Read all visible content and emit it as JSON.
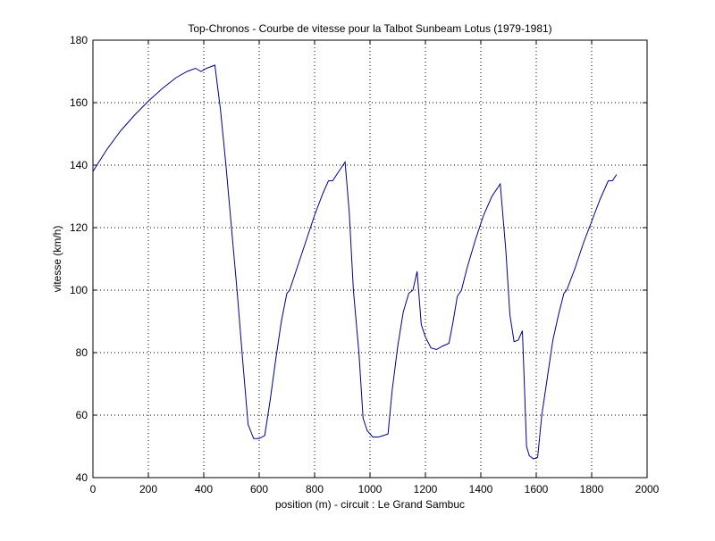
{
  "chart_data": {
    "type": "line",
    "title": "Top-Chronos - Courbe de vitesse pour la Talbot Sunbeam Lotus (1979-1981)",
    "xlabel": "position (m) - circuit : Le Grand Sambuc",
    "ylabel": "vitesse (km/h)",
    "xlim": [
      0,
      2000
    ],
    "ylim": [
      40,
      180
    ],
    "xticks": [
      0,
      200,
      400,
      600,
      800,
      1000,
      1200,
      1400,
      1600,
      1800,
      2000
    ],
    "yticks": [
      40,
      60,
      80,
      100,
      120,
      140,
      160,
      180
    ],
    "grid": true,
    "line_color": "#00008b",
    "series": [
      {
        "x": [
          0,
          50,
          100,
          150,
          200,
          250,
          300,
          340,
          370,
          390,
          410,
          440,
          460,
          480,
          500,
          520,
          540,
          560,
          580,
          600,
          620,
          640,
          660,
          680,
          700,
          710,
          740,
          770,
          800,
          830,
          850,
          865,
          880,
          895,
          910,
          925,
          940,
          960,
          975,
          990,
          1010,
          1030,
          1050,
          1065,
          1080,
          1100,
          1120,
          1140,
          1155,
          1170,
          1185,
          1200,
          1220,
          1240,
          1260,
          1285,
          1300,
          1315,
          1330,
          1350,
          1380,
          1410,
          1440,
          1470,
          1490,
          1505,
          1520,
          1535,
          1550,
          1555,
          1565,
          1575,
          1590,
          1605,
          1620,
          1640,
          1660,
          1680,
          1700,
          1710,
          1740,
          1770,
          1800,
          1830,
          1850,
          1860,
          1875,
          1890
        ],
        "y": [
          138,
          145,
          151,
          156,
          160.5,
          164.5,
          168,
          170,
          171,
          170,
          171,
          172,
          158,
          140,
          120,
          100,
          78,
          57,
          52.5,
          52.5,
          53.5,
          65,
          78,
          90,
          99,
          100,
          108,
          116,
          124,
          131,
          135,
          135,
          137,
          139,
          141,
          125,
          100,
          80,
          59,
          55,
          53,
          53,
          53.5,
          54,
          68,
          82,
          93,
          99,
          100,
          106,
          89,
          85,
          81.5,
          81,
          82,
          83,
          90,
          98,
          100,
          107,
          116,
          124,
          130,
          134,
          113,
          92,
          83.5,
          84,
          87,
          75,
          50,
          47,
          46,
          46.5,
          60,
          72,
          84,
          92,
          99,
          100,
          107,
          115,
          122,
          129,
          133,
          135,
          135,
          137
        ]
      }
    ]
  }
}
